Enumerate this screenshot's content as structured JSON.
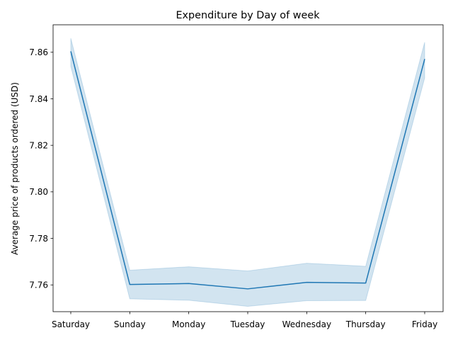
{
  "chart_data": {
    "type": "line",
    "title": "Expenditure by Day of week",
    "xlabel": "",
    "ylabel": "Average price of products ordered (USD)",
    "categories": [
      "Saturday",
      "Sunday",
      "Monday",
      "Tuesday",
      "Wednesday",
      "Thursday",
      "Friday"
    ],
    "series": [
      {
        "values": [
          7.8604,
          7.7602,
          7.7606,
          7.7583,
          7.7611,
          7.7608,
          7.8571
        ],
        "ci_lower": [
          7.854,
          7.754,
          7.7534,
          7.7508,
          7.7532,
          7.7533,
          7.849
        ],
        "ci_upper": [
          7.866,
          7.7663,
          7.7678,
          7.766,
          7.7693,
          7.768,
          7.8643
        ],
        "color": "#1f77b4"
      }
    ],
    "ylim": [
      7.7485,
      7.8718
    ],
    "yticks": [
      7.76,
      7.78,
      7.8,
      7.82,
      7.84,
      7.86
    ],
    "ytick_labels": [
      "7.76",
      "7.78",
      "7.80",
      "7.82",
      "7.84",
      "7.86"
    ],
    "grid": false,
    "legend": "none"
  }
}
